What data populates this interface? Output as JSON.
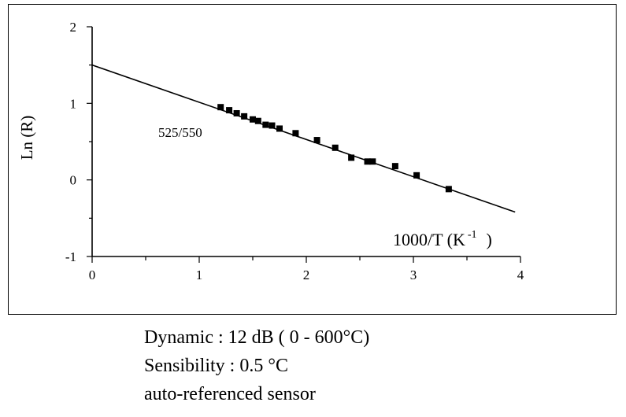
{
  "chart_data": {
    "type": "scatter",
    "xlabel_main": "1000/T",
    "xlabel_unit_base": "(K",
    "xlabel_unit_exp": "-1",
    "xlabel_unit_close": ")",
    "ylabel": "Ln (R)",
    "xlim": [
      0,
      4
    ],
    "ylim": [
      -1,
      2
    ],
    "x_ticks": [
      "0",
      "1",
      "2",
      "3",
      "4"
    ],
    "y_ticks": [
      "2",
      "1",
      "0",
      "-1"
    ],
    "grid": false,
    "annotation": "525/550",
    "series": [
      {
        "marker": "square",
        "x": [
          1.2,
          1.28,
          1.35,
          1.42,
          1.5,
          1.55,
          1.62,
          1.68,
          1.75,
          1.9,
          2.1,
          2.27,
          2.42,
          2.57,
          2.62,
          2.83,
          3.03,
          3.33
        ],
        "y": [
          0.95,
          0.91,
          0.87,
          0.83,
          0.79,
          0.77,
          0.72,
          0.71,
          0.67,
          0.61,
          0.52,
          0.42,
          0.29,
          0.24,
          0.24,
          0.18,
          0.06,
          -0.12
        ]
      }
    ],
    "fit_line": {
      "x": [
        0,
        3.95
      ],
      "y": [
        1.5,
        -0.42
      ]
    }
  },
  "caption": {
    "line1": "Dynamic : 12 dB ( 0 - 600°C)",
    "line2": "Sensibility : 0.5 °C",
    "line3": "auto-referenced sensor"
  }
}
